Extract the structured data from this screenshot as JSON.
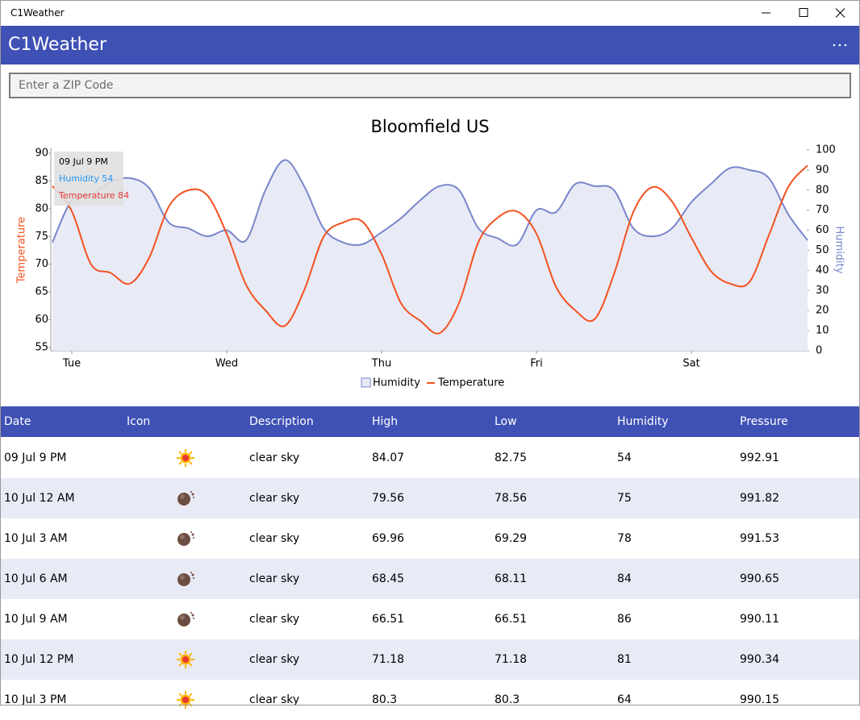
{
  "window": {
    "title": "C1Weather"
  },
  "app_bar": {
    "title": "C1Weather"
  },
  "search": {
    "placeholder": "Enter a ZIP Code"
  },
  "chart_data": {
    "type": "line",
    "title": "Bloomfield US",
    "categories": [
      null,
      "Tue",
      null,
      null,
      null,
      null,
      null,
      null,
      null,
      "Wed",
      null,
      null,
      null,
      null,
      null,
      null,
      null,
      "Thu",
      null,
      null,
      null,
      null,
      null,
      null,
      null,
      "Fri",
      null,
      null,
      null,
      null,
      null,
      null,
      null,
      "Sat",
      null,
      null,
      null,
      null,
      null,
      null
    ],
    "series": [
      {
        "name": "Humidity",
        "style": "area",
        "color": "#7986cb",
        "fill": "#e8eaf6",
        "axis": "y2",
        "values": [
          54,
          75,
          78,
          84,
          86,
          81,
          64,
          61,
          57,
          60,
          55,
          80,
          95,
          82,
          61,
          54,
          53,
          59,
          66,
          75,
          82,
          80,
          61,
          56,
          53,
          70,
          69,
          83,
          82,
          80,
          61,
          57,
          61,
          74,
          83,
          91,
          90,
          86,
          68,
          55
        ]
      },
      {
        "name": "Temperature",
        "style": "line",
        "color": "#f4511e",
        "values": [
          84.07,
          79.56,
          69.96,
          68.45,
          66.51,
          71.18,
          80.3,
          83.3,
          82.4,
          75.5,
          66.3,
          61.7,
          58.9,
          65.3,
          74.9,
          77.5,
          77.7,
          71.8,
          63.0,
          59.8,
          57.6,
          63.0,
          74.0,
          78.4,
          79.5,
          75.5,
          66.0,
          61.7,
          60.1,
          68.2,
          79.4,
          83.9,
          81.3,
          74.8,
          68.8,
          66.5,
          66.8,
          75.2,
          83.9,
          87.8
        ]
      }
    ],
    "ylabel": "Temperature",
    "y2label": "Humidity",
    "ylim": [
      54.42,
      90.58
    ],
    "yticks": [
      55,
      60,
      65,
      70,
      75,
      80,
      85,
      90
    ],
    "y2lim": [
      0,
      100
    ],
    "y2ticks": [
      0,
      10,
      20,
      30,
      40,
      50,
      60,
      70,
      80,
      90,
      100
    ],
    "legend": "bottom",
    "tooltip": {
      "title": "09 Jul 9 PM",
      "lines": [
        "Humidity 54",
        "Temperature 84"
      ]
    }
  },
  "table": {
    "columns": [
      "Date",
      "Icon",
      "Description",
      "High",
      "Low",
      "Humidity",
      "Pressure"
    ],
    "rows": [
      {
        "date": "09 Jul 9 PM",
        "description": "clear sky",
        "high": 84.07,
        "low": 82.75,
        "humidity": 54,
        "pressure": 992.91
      },
      {
        "date": "10 Jul 12 AM",
        "description": "clear sky",
        "high": 79.56,
        "low": 78.56,
        "humidity": 75,
        "pressure": 991.82
      },
      {
        "date": "10 Jul 3 AM",
        "description": "clear sky",
        "high": 69.96,
        "low": 69.29,
        "humidity": 78,
        "pressure": 991.53
      },
      {
        "date": "10 Jul 6 AM",
        "description": "clear sky",
        "high": 68.45,
        "low": 68.11,
        "humidity": 84,
        "pressure": 990.65
      },
      {
        "date": "10 Jul 9 AM",
        "description": "clear sky",
        "high": 66.51,
        "low": 66.51,
        "humidity": 86,
        "pressure": 990.11
      },
      {
        "date": "10 Jul 12 PM",
        "description": "clear sky",
        "high": 71.18,
        "low": 71.18,
        "humidity": 81,
        "pressure": 990.34
      },
      {
        "date": "10 Jul 3 PM",
        "description": "clear sky",
        "high": 80.3,
        "low": 80.3,
        "humidity": 64,
        "pressure": 990.15
      }
    ]
  }
}
